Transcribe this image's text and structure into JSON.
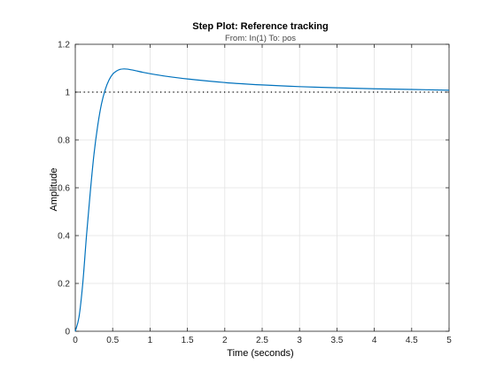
{
  "chart_data": {
    "type": "line",
    "title": "Step Plot: Reference tracking",
    "subtitle": "From: In(1)  To: pos",
    "xlabel": "Time (seconds)",
    "ylabel": "Amplitude",
    "xlim": [
      0,
      5
    ],
    "ylim": [
      0,
      1.2
    ],
    "xticks": [
      0,
      0.5,
      1,
      1.5,
      2,
      2.5,
      3,
      3.5,
      4,
      4.5,
      5
    ],
    "xtick_labels": [
      "0",
      "0.5",
      "1",
      "1.5",
      "2",
      "2.5",
      "3",
      "3.5",
      "4",
      "4.5",
      "5"
    ],
    "yticks": [
      0,
      0.2,
      0.4,
      0.6,
      0.8,
      1,
      1.2
    ],
    "ytick_labels": [
      "0",
      "0.2",
      "0.4",
      "0.6",
      "0.8",
      "1",
      "1.2"
    ],
    "grid": true,
    "reference_line": {
      "y": 1,
      "style": "dotted",
      "color": "#000000"
    },
    "series": [
      {
        "color": "#0072BD",
        "x": [
          0,
          0.05,
          0.1,
          0.15,
          0.2,
          0.25,
          0.3,
          0.35,
          0.4,
          0.45,
          0.5,
          0.55,
          0.6,
          0.65,
          0.7,
          0.8,
          0.9,
          1.0,
          1.2,
          1.5,
          2.0,
          2.5,
          3.0,
          3.5,
          4.0,
          4.5,
          5.0
        ],
        "y": [
          0,
          0.06,
          0.2,
          0.4,
          0.58,
          0.74,
          0.86,
          0.95,
          1.01,
          1.05,
          1.075,
          1.088,
          1.095,
          1.097,
          1.096,
          1.09,
          1.083,
          1.077,
          1.067,
          1.055,
          1.04,
          1.03,
          1.023,
          1.018,
          1.014,
          1.011,
          1.008
        ]
      }
    ]
  }
}
